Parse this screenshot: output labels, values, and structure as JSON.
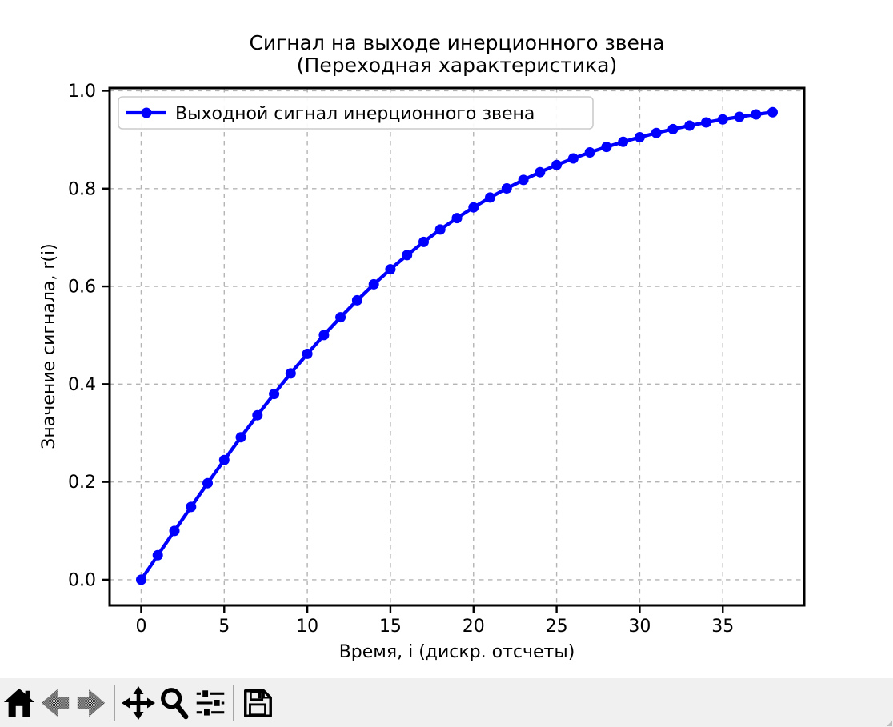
{
  "window": {
    "canvas_bg": "#ffffff",
    "toolbar_bg": "#f0f0f0"
  },
  "chart_data": {
    "type": "line",
    "title_line1": "Сигнал на выходе инерционного звена",
    "title_line2": "(Переходная характеристика)",
    "xlabel": "Время, i (дискр. отсчеты)",
    "ylabel": "Значение сигнала, r(i)",
    "legend_entries": [
      "Выходной сигнал инерционного звена"
    ],
    "legend_position": "upper left",
    "grid": true,
    "line_color": "#0000ff",
    "marker": "o",
    "x": [
      0,
      1,
      2,
      3,
      4,
      5,
      6,
      7,
      8,
      9,
      10,
      11,
      12,
      13,
      14,
      15,
      16,
      17,
      18,
      19,
      20,
      21,
      22,
      23,
      24,
      25,
      26,
      27,
      28,
      29,
      30,
      31,
      32,
      33,
      34,
      35,
      36,
      37,
      38
    ],
    "y": [
      0.0,
      0.05,
      0.0997,
      0.1489,
      0.1974,
      0.2449,
      0.2913,
      0.3364,
      0.3799,
      0.4219,
      0.4621,
      0.5005,
      0.537,
      0.5717,
      0.6044,
      0.6351,
      0.664,
      0.6911,
      0.7163,
      0.7398,
      0.7616,
      0.7818,
      0.8005,
      0.8178,
      0.8337,
      0.8483,
      0.8617,
      0.8741,
      0.8854,
      0.8957,
      0.9051,
      0.9138,
      0.9217,
      0.9289,
      0.9354,
      0.9414,
      0.9468,
      0.9517,
      0.9562
    ],
    "xticks": [
      0,
      5,
      10,
      15,
      20,
      25,
      30,
      35
    ],
    "ytick_labels": [
      "0.0",
      "0.2",
      "0.4",
      "0.6",
      "0.8",
      "1.0"
    ],
    "xlim": [
      -1.9,
      39.9
    ],
    "ylim": [
      -0.0525,
      1.0057
    ]
  },
  "toolbar": {
    "buttons": [
      {
        "name": "home",
        "icon": "home-icon",
        "enabled": true
      },
      {
        "name": "back",
        "icon": "back-arrow-icon",
        "enabled": false
      },
      {
        "name": "forward",
        "icon": "forward-arrow-icon",
        "enabled": false
      },
      {
        "name": "pan",
        "icon": "pan-arrows-icon",
        "enabled": true
      },
      {
        "name": "zoom",
        "icon": "zoom-magnifier-icon",
        "enabled": true
      },
      {
        "name": "configure-subplots",
        "icon": "sliders-icon",
        "enabled": true
      },
      {
        "name": "save",
        "icon": "save-floppy-icon",
        "enabled": true
      }
    ]
  }
}
